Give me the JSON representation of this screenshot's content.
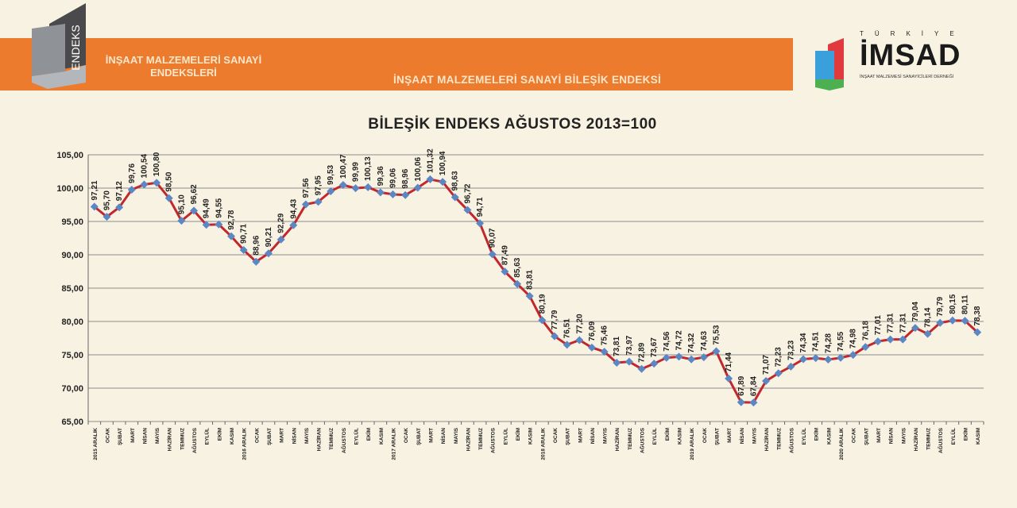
{
  "header": {
    "logo_text": "ENDEKS",
    "banner_title": "İNŞAAT MALZEMELERİ SANAYİ ENDEKSLERİ",
    "banner_subtitle": "İNŞAAT MALZEMELERİ SANAYİ BİLEŞİK ENDEKSİ",
    "brand_logo": {
      "top": "TÜRKİYE",
      "name": "İMSAD",
      "caption": "İNŞAAT MALZEMESİ SANAYİCİLERİ DERNEĞİ"
    }
  },
  "colors": {
    "banner": "#ec7b2e",
    "line": "#c0282d",
    "marker": "#5b87c5",
    "grid": "#8c8c8c"
  },
  "chart_data": {
    "type": "line",
    "title": "BİLEŞİK ENDEKS AĞUSTOS 2013=100",
    "xlabel": "",
    "ylabel": "",
    "ylim": [
      65,
      105
    ],
    "yticks": [
      "65,00",
      "70,00",
      "75,00",
      "80,00",
      "85,00",
      "90,00",
      "95,00",
      "100,00",
      "105,00"
    ],
    "grid": true,
    "categories": [
      "2015 ARALIK",
      "OCAK",
      "ŞUBAT",
      "MART",
      "NİSAN",
      "MAYIS",
      "HAZİRAN",
      "TEMMUZ",
      "AĞUSTOS",
      "EYLÜL",
      "EKİM",
      "KASIM",
      "2016 ARALIK",
      "OCAK",
      "ŞUBAT",
      "MART",
      "NİSAN",
      "MAYIS",
      "HAZİRAN",
      "TEMMUZ",
      "AĞUSTOS",
      "EYLÜL",
      "EKİM",
      "KASIM",
      "2017 ARALIK",
      "OCAK",
      "ŞUBAT",
      "MART",
      "NİSAN",
      "MAYIS",
      "HAZİRAN",
      "TEMMUZ",
      "AĞUSTOS",
      "EYLÜL",
      "EKİM",
      "KASIM",
      "2018 ARALIK",
      "OCAK",
      "ŞUBAT",
      "MART",
      "NİSAN",
      "MAYIS",
      "HAZİRAN",
      "TEMMUZ",
      "AĞUSTOS",
      "EYLÜL",
      "EKİM",
      "KASIM",
      "2019 ARALIK",
      "OCAK",
      "ŞUBAT",
      "MART",
      "NİSAN",
      "MAYIS",
      "HAZİRAN",
      "TEMMUZ",
      "AĞUSTOS",
      "EYLÜL",
      "EKİM",
      "KASIM",
      "2020 ARALIK",
      "OCAK",
      "ŞUBAT",
      "MART",
      "NİSAN",
      "MAYIS",
      "HAZİRAN",
      "TEMMUZ",
      "AĞUSTOS",
      "EYLÜL",
      "EKİM",
      "KASIM"
    ],
    "values": [
      97.21,
      95.7,
      97.12,
      99.76,
      100.54,
      100.8,
      98.5,
      95.1,
      96.62,
      94.49,
      94.55,
      92.78,
      90.71,
      88.96,
      90.21,
      92.29,
      94.43,
      97.56,
      97.95,
      99.53,
      100.47,
      99.99,
      100.13,
      99.36,
      99.06,
      98.96,
      100.06,
      101.32,
      100.94,
      98.63,
      96.72,
      94.71,
      90.07,
      87.49,
      85.63,
      83.81,
      80.19,
      77.79,
      76.51,
      77.2,
      76.09,
      75.46,
      73.81,
      73.97,
      72.89,
      73.67,
      74.56,
      74.72,
      74.32,
      74.63,
      75.53,
      71.44,
      67.89,
      67.84,
      71.07,
      72.23,
      73.23,
      74.34,
      74.51,
      74.28,
      74.55,
      74.98,
      76.18,
      77.01,
      77.31,
      77.31,
      79.04,
      78.14,
      79.79,
      80.15,
      80.11,
      78.38
    ]
  }
}
